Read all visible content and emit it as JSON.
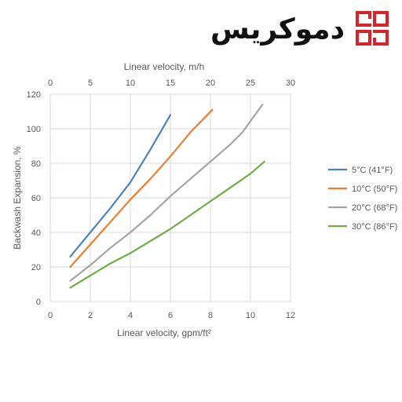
{
  "logo": {
    "text": "دموکریس",
    "mark": "grid-logo-mark",
    "mark_color": "#d9222a"
  },
  "chart_data": {
    "type": "line",
    "title": "",
    "xlabel": "Linear velocity, gpm/ft²",
    "x2label": "Linear velocity, m/h",
    "ylabel": "Backwash Expansion, %",
    "xlim": [
      0,
      12
    ],
    "x2lim": [
      0,
      30
    ],
    "ylim": [
      0,
      120
    ],
    "x_ticks": [
      0,
      2,
      4,
      6,
      8,
      10,
      12
    ],
    "x2_ticks": [
      0,
      5,
      10,
      15,
      20,
      25,
      30
    ],
    "y_ticks": [
      0,
      20,
      40,
      60,
      80,
      100,
      120
    ],
    "grid": true,
    "legend_position": "right",
    "series": [
      {
        "name": "5°C (41°F)",
        "color": "#4f81bd",
        "x": [
          1,
          2,
          3,
          4,
          5,
          6
        ],
        "y": [
          26,
          40,
          54,
          69,
          88,
          108
        ]
      },
      {
        "name": "10°C (50°F)",
        "color": "#ed7d31",
        "x": [
          1,
          2,
          3,
          4,
          5,
          6,
          7,
          8.1
        ],
        "y": [
          20,
          33,
          46,
          59,
          71,
          84,
          98,
          111
        ]
      },
      {
        "name": "20°C (68°F)",
        "color": "#a5a5a5",
        "x": [
          1,
          2,
          3,
          4,
          5,
          6,
          7,
          8,
          9,
          9.6,
          10.6
        ],
        "y": [
          12,
          21,
          31,
          40,
          50,
          61,
          71,
          81,
          91,
          98,
          114
        ]
      },
      {
        "name": "30°C (86°F)",
        "color": "#70ad47",
        "x": [
          1,
          2,
          3,
          4,
          5,
          6,
          7,
          8,
          9,
          10,
          10.7
        ],
        "y": [
          8,
          15,
          22,
          28,
          35,
          42,
          50,
          58,
          66,
          74,
          81
        ]
      }
    ]
  }
}
